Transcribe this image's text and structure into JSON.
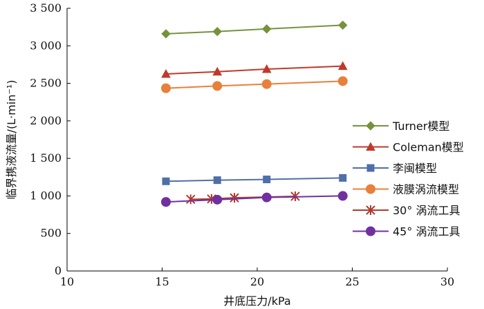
{
  "chart_data": {
    "type": "line",
    "xlabel": "井底压力/kPa",
    "ylabel": "临界携液流量/(L·min⁻¹)",
    "xlim": [
      10,
      30
    ],
    "ylim": [
      0,
      3500
    ],
    "xticks": [
      10,
      15,
      20,
      25,
      30
    ],
    "xtick_labels": [
      "10",
      "15",
      "20",
      "25",
      "30"
    ],
    "yticks": [
      0,
      500,
      1000,
      1500,
      2000,
      2500,
      3000,
      3500
    ],
    "ytick_labels": [
      "0",
      "500",
      "1 000",
      "1 500",
      "2 000",
      "2 500",
      "3 000",
      "3 500"
    ],
    "grid": false,
    "legend_position": "right",
    "series": [
      {
        "name": "Turner模型",
        "color": "#76923C",
        "marker": "diamond",
        "points": [
          [
            15.2,
            3160
          ],
          [
            17.9,
            3190
          ],
          [
            20.5,
            3225
          ],
          [
            24.5,
            3275
          ]
        ]
      },
      {
        "name": "Coleman模型",
        "color": "#C0392B",
        "marker": "triangle",
        "points": [
          [
            15.2,
            2625
          ],
          [
            17.9,
            2655
          ],
          [
            20.5,
            2690
          ],
          [
            24.5,
            2730
          ]
        ]
      },
      {
        "name": "李闽模型",
        "color": "#4F6FA8",
        "marker": "square",
        "points": [
          [
            15.2,
            1195
          ],
          [
            17.9,
            1210
          ],
          [
            20.5,
            1220
          ],
          [
            24.5,
            1240
          ]
        ]
      },
      {
        "name": "液膜涡流模型",
        "color": "#E8803A",
        "marker": "circle",
        "points": [
          [
            15.2,
            2435
          ],
          [
            17.9,
            2465
          ],
          [
            20.5,
            2490
          ],
          [
            24.5,
            2530
          ]
        ]
      },
      {
        "name": "30° 涡流工具",
        "color": "#B03A2E",
        "marker": "asterisk",
        "points": [
          [
            16.5,
            955
          ],
          [
            17.6,
            960
          ],
          [
            18.8,
            975
          ],
          [
            22.0,
            995
          ]
        ]
      },
      {
        "name": "45° 涡流工具",
        "color": "#7030A0",
        "marker": "circle",
        "points": [
          [
            15.2,
            920
          ],
          [
            17.9,
            950
          ],
          [
            20.5,
            980
          ],
          [
            24.5,
            1000
          ]
        ]
      }
    ]
  }
}
